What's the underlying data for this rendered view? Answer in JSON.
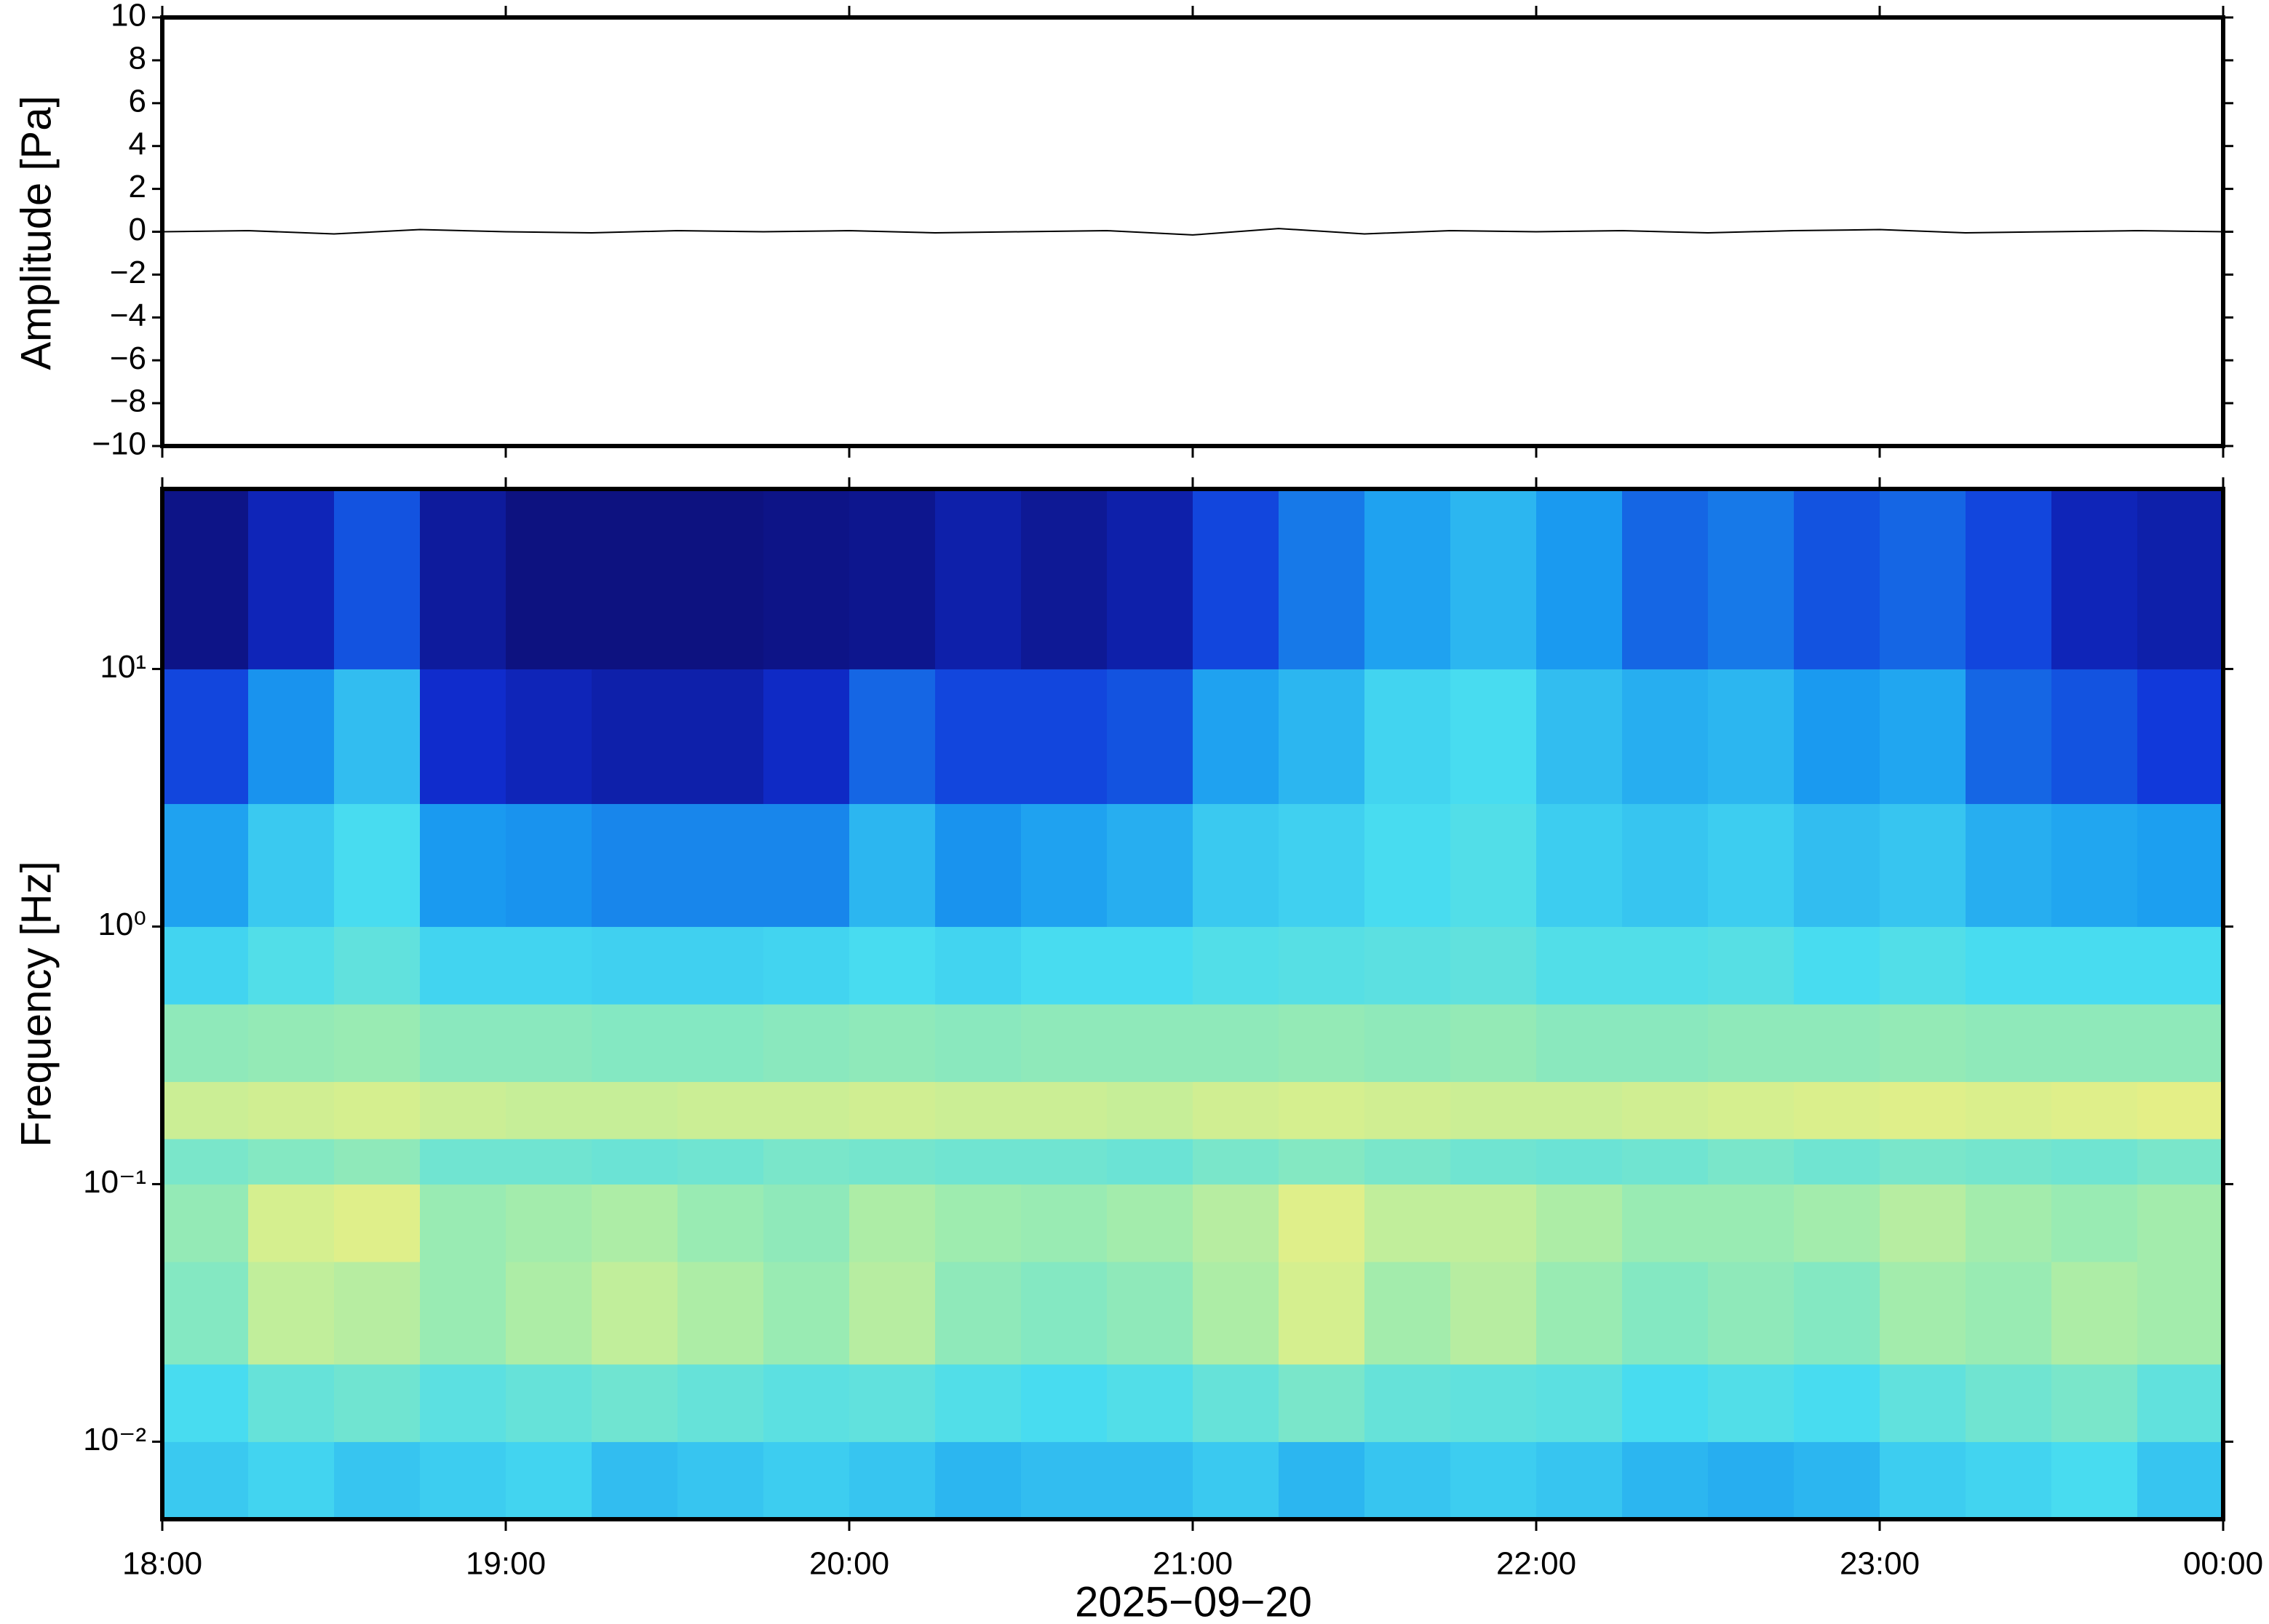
{
  "chart_data": [
    {
      "type": "line",
      "ylabel": "Amplitude [Pa]",
      "xlim": [
        18,
        24
      ],
      "xticks": [
        {
          "value": 18,
          "label": "18:00"
        },
        {
          "value": 19,
          "label": "19:00"
        },
        {
          "value": 20,
          "label": "20:00"
        },
        {
          "value": 21,
          "label": "21:00"
        },
        {
          "value": 22,
          "label": "22:00"
        },
        {
          "value": 23,
          "label": "23:00"
        },
        {
          "value": 24,
          "label": "00:00"
        }
      ],
      "ylim": [
        -10,
        10
      ],
      "yticks": [
        {
          "value": -10,
          "label": "−10"
        },
        {
          "value": -8,
          "label": "−8"
        },
        {
          "value": -6,
          "label": "−6"
        },
        {
          "value": -4,
          "label": "−4"
        },
        {
          "value": -2,
          "label": "−2"
        },
        0,
        2,
        4,
        6,
        8,
        10
      ],
      "color": "#000000",
      "x": [
        18,
        18.25,
        18.5,
        18.75,
        19,
        19.25,
        19.5,
        19.75,
        20,
        20.25,
        20.5,
        20.75,
        21,
        21.25,
        21.5,
        21.75,
        22,
        22.25,
        22.5,
        22.75,
        23,
        23.25,
        23.5,
        23.75,
        24
      ],
      "values": [
        0,
        0.05,
        -0.1,
        0.1,
        0,
        -0.05,
        0.05,
        0,
        0.05,
        -0.05,
        0,
        0.05,
        -0.15,
        0.15,
        -0.1,
        0.05,
        0,
        0.05,
        -0.05,
        0.05,
        0.1,
        -0.05,
        0,
        0.05,
        0
      ]
    },
    {
      "type": "heatmap",
      "ylabel": "Frequency [Hz]",
      "xlabel": "2025−09−20",
      "log_y": true,
      "xlim": [
        18,
        24
      ],
      "xticks": [
        {
          "value": 18,
          "label": "18:00"
        },
        {
          "value": 19,
          "label": "19:00"
        },
        {
          "value": 20,
          "label": "20:00"
        },
        {
          "value": 21,
          "label": "21:00"
        },
        {
          "value": 22,
          "label": "22:00"
        },
        {
          "value": 23,
          "label": "23:00"
        },
        {
          "value": 24,
          "label": "00:00"
        }
      ],
      "ylim": [
        0.005,
        50
      ],
      "yticks": [
        {
          "value": 0.01,
          "label": "10⁻²"
        },
        {
          "value": 0.1,
          "label": "10⁻¹"
        },
        {
          "value": 1,
          "label": "10⁰"
        },
        {
          "value": 10,
          "label": "10¹"
        }
      ],
      "colormap": [
        "#0c0864",
        "#1030d8",
        "#1a9cf0",
        "#48dcf0",
        "#9cecb0",
        "#f0f080",
        "#f0b060"
      ],
      "x_edges": [
        18,
        18.25,
        18.5,
        18.75,
        19,
        19.25,
        19.5,
        19.75,
        20,
        20.25,
        20.5,
        20.75,
        21,
        21.25,
        21.5,
        21.75,
        22,
        22.25,
        22.5,
        22.75,
        23,
        23.25,
        23.5,
        23.75,
        24
      ],
      "y_edges": [
        0.005,
        0.01,
        0.02,
        0.05,
        0.1,
        0.15,
        0.25,
        0.5,
        1,
        3,
        10,
        50
      ],
      "z": [
        [
          0.45,
          0.48,
          0.44,
          0.46,
          0.48,
          0.42,
          0.44,
          0.46,
          0.44,
          0.4,
          0.42,
          0.42,
          0.45,
          0.4,
          0.44,
          0.46,
          0.44,
          0.4,
          0.38,
          0.4,
          0.46,
          0.48,
          0.5,
          0.44
        ],
        [
          0.5,
          0.56,
          0.58,
          0.54,
          0.56,
          0.58,
          0.56,
          0.54,
          0.55,
          0.52,
          0.5,
          0.52,
          0.56,
          0.6,
          0.56,
          0.55,
          0.54,
          0.5,
          0.52,
          0.5,
          0.55,
          0.58,
          0.6,
          0.55
        ],
        [
          0.62,
          0.74,
          0.72,
          0.66,
          0.7,
          0.74,
          0.7,
          0.66,
          0.72,
          0.64,
          0.62,
          0.64,
          0.7,
          0.78,
          0.68,
          0.72,
          0.66,
          0.62,
          0.64,
          0.62,
          0.68,
          0.66,
          0.7,
          0.68
        ],
        [
          0.65,
          0.78,
          0.8,
          0.66,
          0.68,
          0.7,
          0.66,
          0.64,
          0.7,
          0.67,
          0.66,
          0.68,
          0.72,
          0.8,
          0.74,
          0.74,
          0.7,
          0.66,
          0.66,
          0.68,
          0.72,
          0.68,
          0.66,
          0.68
        ],
        [
          0.6,
          0.62,
          0.64,
          0.58,
          0.58,
          0.57,
          0.58,
          0.6,
          0.59,
          0.58,
          0.58,
          0.57,
          0.6,
          0.62,
          0.6,
          0.58,
          0.57,
          0.58,
          0.6,
          0.58,
          0.6,
          0.59,
          0.58,
          0.6
        ],
        [
          0.76,
          0.77,
          0.78,
          0.76,
          0.75,
          0.75,
          0.76,
          0.76,
          0.77,
          0.76,
          0.76,
          0.75,
          0.77,
          0.78,
          0.77,
          0.76,
          0.76,
          0.77,
          0.78,
          0.79,
          0.8,
          0.79,
          0.8,
          0.81
        ],
        [
          0.64,
          0.65,
          0.66,
          0.63,
          0.63,
          0.62,
          0.62,
          0.63,
          0.64,
          0.63,
          0.64,
          0.64,
          0.64,
          0.65,
          0.64,
          0.65,
          0.63,
          0.63,
          0.64,
          0.64,
          0.65,
          0.64,
          0.64,
          0.64
        ],
        [
          0.48,
          0.52,
          0.55,
          0.48,
          0.48,
          0.47,
          0.47,
          0.48,
          0.5,
          0.48,
          0.5,
          0.5,
          0.52,
          0.53,
          0.54,
          0.55,
          0.52,
          0.52,
          0.53,
          0.5,
          0.52,
          0.5,
          0.5,
          0.5
        ],
        [
          0.35,
          0.45,
          0.5,
          0.33,
          0.32,
          0.3,
          0.3,
          0.3,
          0.4,
          0.32,
          0.35,
          0.38,
          0.45,
          0.47,
          0.5,
          0.52,
          0.46,
          0.44,
          0.46,
          0.42,
          0.44,
          0.38,
          0.36,
          0.34
        ],
        [
          0.2,
          0.32,
          0.42,
          0.15,
          0.12,
          0.1,
          0.1,
          0.14,
          0.25,
          0.2,
          0.2,
          0.22,
          0.35,
          0.4,
          0.48,
          0.5,
          0.42,
          0.38,
          0.4,
          0.33,
          0.36,
          0.25,
          0.22,
          0.18
        ],
        [
          0.05,
          0.12,
          0.22,
          0.08,
          0.04,
          0.04,
          0.04,
          0.05,
          0.06,
          0.1,
          0.07,
          0.1,
          0.2,
          0.28,
          0.35,
          0.4,
          0.33,
          0.25,
          0.28,
          0.22,
          0.25,
          0.2,
          0.12,
          0.1
        ]
      ]
    }
  ]
}
